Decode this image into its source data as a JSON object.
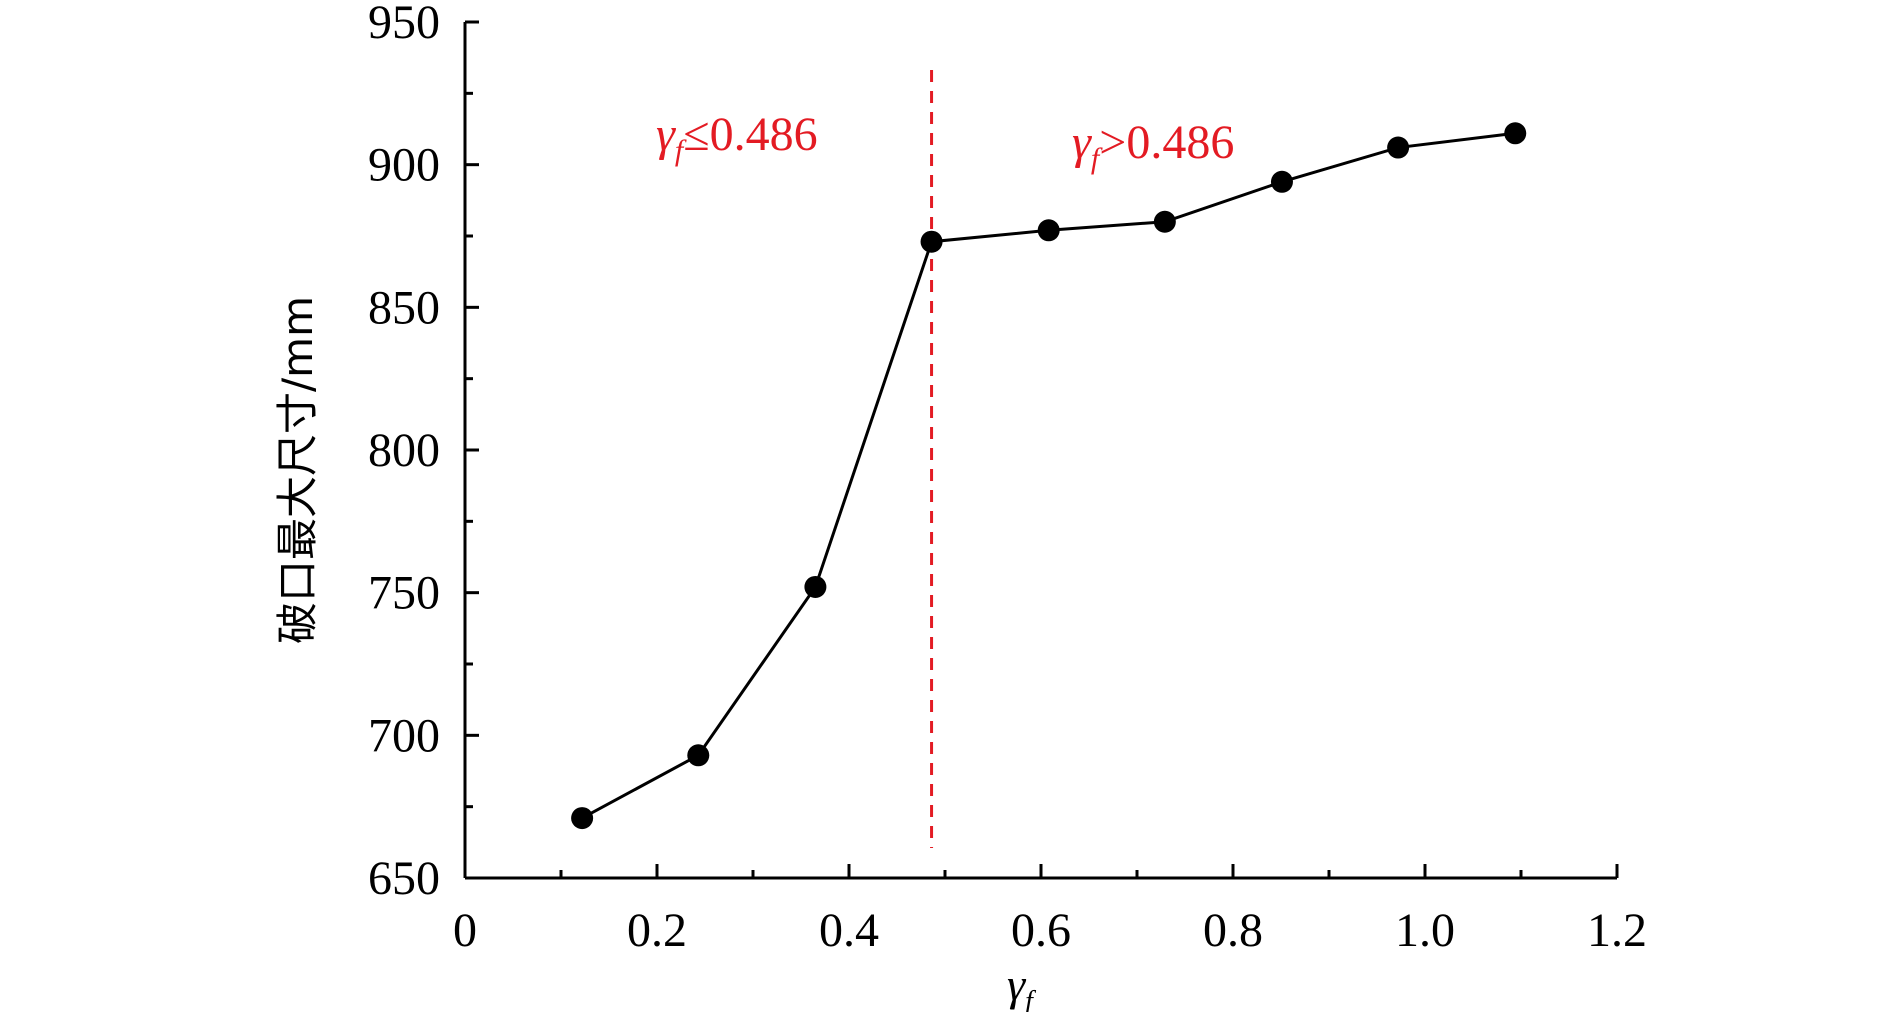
{
  "chart_data": {
    "type": "line",
    "title": "",
    "xlabel": "γf",
    "ylabel": "破口最大尺寸/mm",
    "xlim": [
      0,
      1.2
    ],
    "ylim": [
      650,
      950
    ],
    "x_ticks": [
      "0",
      "0.2",
      "0.4",
      "0.6",
      "0.8",
      "1.0",
      "1.2"
    ],
    "y_ticks": [
      "650",
      "700",
      "750",
      "800",
      "850",
      "900",
      "950"
    ],
    "series": [
      {
        "x": [
          0.122,
          0.243,
          0.365,
          0.486,
          0.608,
          0.729,
          0.851,
          0.972,
          1.094
        ],
        "y": [
          671,
          693,
          752,
          873,
          877,
          880,
          894,
          906,
          911
        ]
      }
    ],
    "threshold_x": 0.486,
    "annotations": {
      "left": "γf≤0.486",
      "right": "γf>0.486"
    },
    "colors": {
      "series": "#000000",
      "annotation": "#e31b23"
    },
    "grid": false,
    "legend": "none"
  }
}
